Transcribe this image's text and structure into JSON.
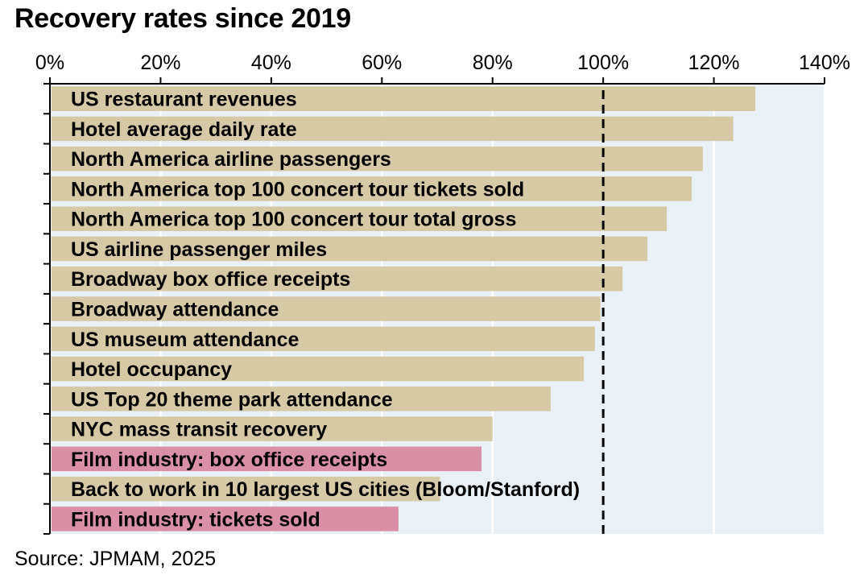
{
  "chart_data": {
    "type": "bar",
    "orientation": "horizontal",
    "title": "Recovery rates since 2019",
    "source": "Source: JPMAM, 2025",
    "xlim": [
      0,
      140
    ],
    "x_ticks": [
      0,
      20,
      40,
      60,
      80,
      100,
      120,
      140
    ],
    "x_tick_labels": [
      "0%",
      "20%",
      "40%",
      "60%",
      "80%",
      "100%",
      "120%",
      "140%"
    ],
    "reference_line": {
      "value": 100,
      "style": "dashed"
    },
    "grid": true,
    "colors": {
      "default": "#d6c9a6",
      "highlight": "#d98fa5",
      "plot_background": "#e9f1f7",
      "gridline": "#ffffff"
    },
    "categories": [
      "US restaurant revenues",
      "Hotel average daily rate",
      "North America airline passengers",
      "North America top 100 concert tour tickets sold",
      "North America top 100 concert tour total gross",
      "US airline passenger miles",
      "Broadway box office receipts",
      "Broadway attendance",
      "US museum attendance",
      "Hotel occupancy",
      "US Top 20 theme park attendance",
      "NYC mass transit recovery",
      "Film industry: box office receipts",
      "Back to work in 10 largest US cities (Bloom/Stanford)",
      "Film industry: tickets sold"
    ],
    "values": [
      127.5,
      123.5,
      118,
      116,
      111.5,
      108,
      103.5,
      99.5,
      98.5,
      96.5,
      90.5,
      80,
      78,
      70.5,
      63
    ],
    "highlighted": [
      false,
      false,
      false,
      false,
      false,
      false,
      false,
      false,
      false,
      false,
      false,
      false,
      true,
      false,
      true
    ]
  }
}
